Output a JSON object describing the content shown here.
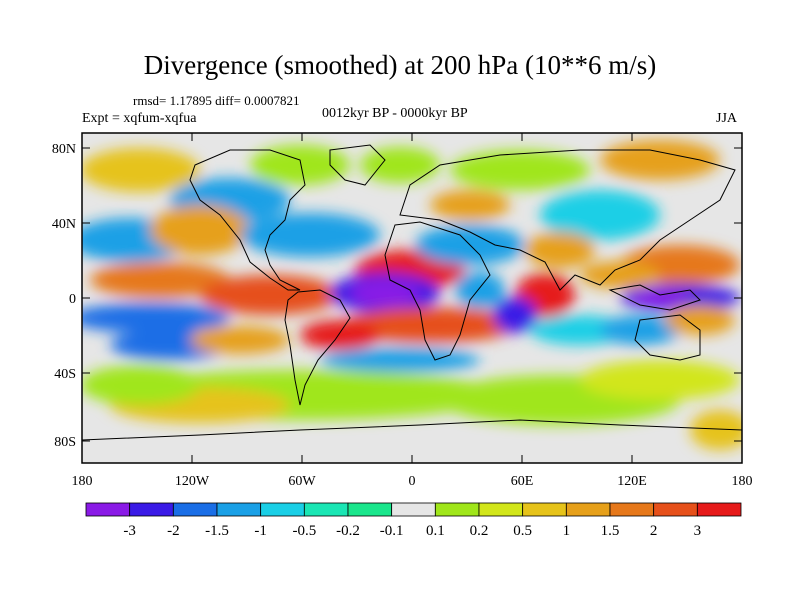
{
  "title": "Divergence (smoothed) at 200 hPa (10**6 m/s)",
  "stats": "rmsd= 1.17895 diff= 0.0007821",
  "experiment": "Expt = xqfum-xqfua",
  "period": "0012kyr BP - 0000kyr BP",
  "season": "JJA",
  "lat_labels": [
    "80N",
    "40N",
    "0",
    "40S",
    "80S"
  ],
  "lon_labels": [
    "180",
    "120W",
    "60W",
    "0",
    "60E",
    "120E",
    "180"
  ],
  "colorbar": {
    "colors": [
      "#8a1ae6",
      "#3a1ae6",
      "#1a6ee6",
      "#1aa0e6",
      "#1acfe6",
      "#1ae6b4",
      "#1ae68c",
      "#e6e6e6",
      "#a0e61a",
      "#d2e61a",
      "#e6c31a",
      "#e6a01a",
      "#e6781a",
      "#e6501a",
      "#e61a1a"
    ],
    "labels": [
      "-3",
      "-2",
      "-1.5",
      "-1",
      "-0.5",
      "-0.2",
      "-0.1",
      "0.1",
      "0.2",
      "0.5",
      "1",
      "1.5",
      "2",
      "3"
    ]
  }
}
